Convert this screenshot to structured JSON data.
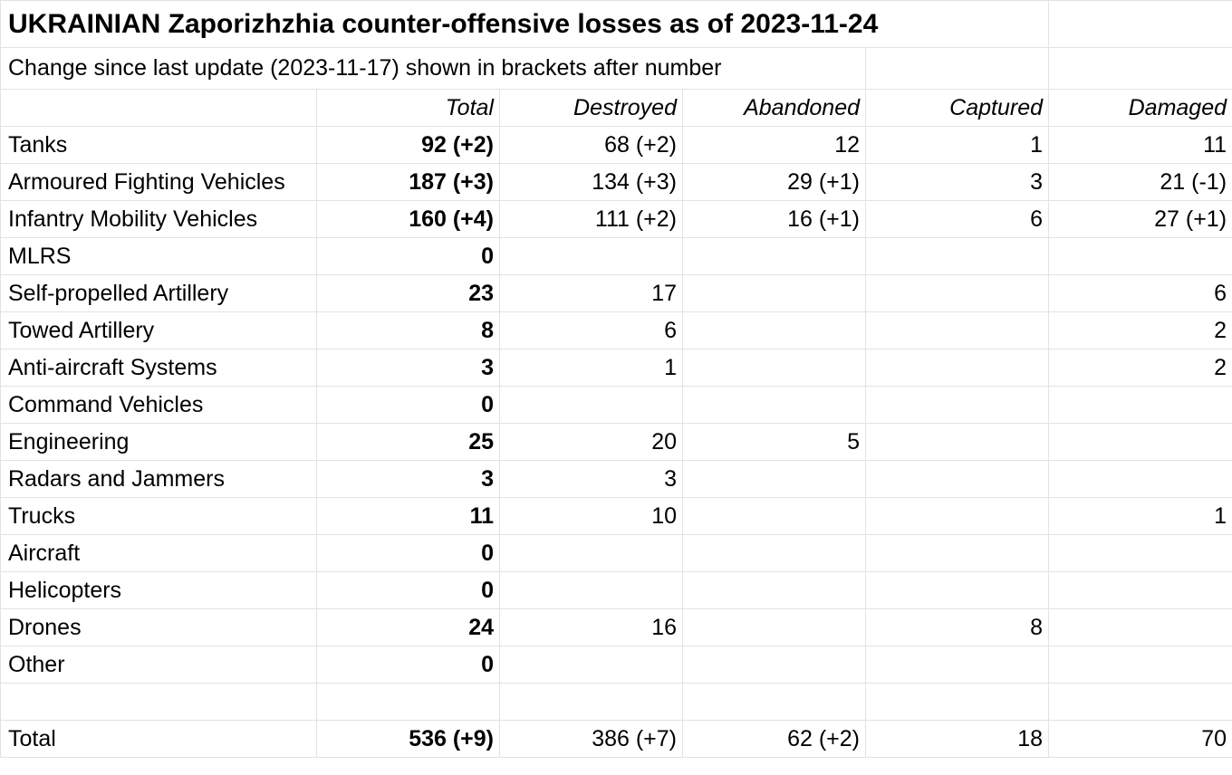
{
  "title": "UKRAINIAN Zaporizhzhia counter-offensive losses as of 2023-11-24",
  "subtitle": "Change since last update (2023-11-17) shown in brackets after number",
  "table": {
    "header": [
      null,
      "Total",
      "Destroyed",
      "Abandoned",
      "Captured",
      "Damaged"
    ],
    "rows": [
      [
        "Tanks",
        "92 (+2)",
        "68 (+2)",
        "12",
        "1",
        "11"
      ],
      [
        "Armoured Fighting Vehicles",
        "187 (+3)",
        "134 (+3)",
        "29 (+1)",
        "3",
        "21 (-1)"
      ],
      [
        "Infantry Mobility Vehicles",
        "160 (+4)",
        "111 (+2)",
        "16 (+1)",
        "6",
        "27 (+1)"
      ],
      [
        "MLRS",
        "0",
        null,
        null,
        null,
        null
      ],
      [
        "Self-propelled Artillery",
        "23",
        "17",
        null,
        null,
        "6"
      ],
      [
        "Towed Artillery",
        "8",
        "6",
        null,
        null,
        "2"
      ],
      [
        "Anti-aircraft Systems",
        "3",
        "1",
        null,
        null,
        "2"
      ],
      [
        "Command Vehicles",
        "0",
        null,
        null,
        null,
        null
      ],
      [
        "Engineering",
        "25",
        "20",
        "5",
        null,
        null
      ],
      [
        "Radars and Jammers",
        "3",
        "3",
        null,
        null,
        null
      ],
      [
        "Trucks",
        "11",
        "10",
        null,
        null,
        "1"
      ],
      [
        "Aircraft",
        "0",
        null,
        null,
        null,
        null
      ],
      [
        "Helicopters",
        "0",
        null,
        null,
        null,
        null
      ],
      [
        "Drones",
        "24",
        "16",
        null,
        "8",
        null
      ],
      [
        "Other",
        "0",
        null,
        null,
        null,
        null
      ],
      [
        null,
        null,
        null,
        null,
        null,
        null
      ],
      [
        "Total",
        "536 (+9)",
        "386 (+7)",
        "62 (+2)",
        "18",
        "70"
      ]
    ]
  }
}
